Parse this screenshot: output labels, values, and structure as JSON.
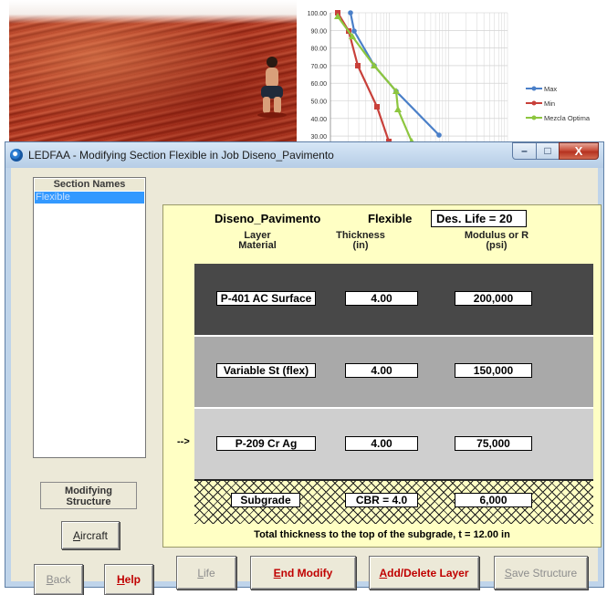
{
  "window": {
    "title": "LEDFAA - Modifying Section Flexible in Job Diseno_Pavimento",
    "minimize_glyph": "–",
    "maximize_glyph": "□",
    "close_glyph": "X"
  },
  "background_chart": {
    "y_ticks": [
      "100.00",
      "90.00",
      "80.00",
      "70.00",
      "60.00",
      "50.00",
      "40.00",
      "30.00"
    ],
    "legend": [
      {
        "label": "Max",
        "color": "#4a7fc8"
      },
      {
        "label": "Min",
        "color": "#c8403a"
      },
      {
        "label": "Mezcla Optima",
        "color": "#8dc63f"
      }
    ]
  },
  "sections": {
    "header": "Section Names",
    "items": [
      "Flexible"
    ],
    "selected": "Flexible"
  },
  "status": {
    "line1": "Modifying",
    "line2": "Structure"
  },
  "panel": {
    "job_name": "Diseno_Pavimento",
    "section_name": "Flexible",
    "des_life": "Des. Life = 20",
    "col_layer_1": "Layer",
    "col_layer_2": "Material",
    "col_thick_1": "Thickness",
    "col_thick_2": "(in)",
    "col_mod_1": "Modulus or R",
    "col_mod_2": "(psi)",
    "arrow": "-->",
    "total": "Total thickness to the top of the subgrade, t = 12.00 in"
  },
  "layers": [
    {
      "material": "P-401 AC Surface",
      "thickness": "4.00",
      "modulus": "200,000",
      "color": "#484848"
    },
    {
      "material": "Variable St (flex)",
      "thickness": "4.00",
      "modulus": "150,000",
      "color": "#a9a9a9"
    },
    {
      "material": "P-209 Cr Ag",
      "thickness": "4.00",
      "modulus": "75,000",
      "color": "#cfcfcf"
    }
  ],
  "subgrade": {
    "material": "Subgrade",
    "thickness": "CBR = 4.0",
    "modulus": "6,000"
  },
  "buttons": {
    "aircraft": "Aircraft",
    "back": "Back",
    "help": "Help",
    "life": "Life",
    "end_modify": "End Modify",
    "add_delete_layer": "Add/Delete Layer",
    "save_structure": "Save Structure"
  },
  "colors": {
    "accent_red": "#c00000",
    "panel_yellow": "#ffffc4",
    "selection_blue": "#3399ff",
    "disabled_gray": "#8d8d8d"
  }
}
